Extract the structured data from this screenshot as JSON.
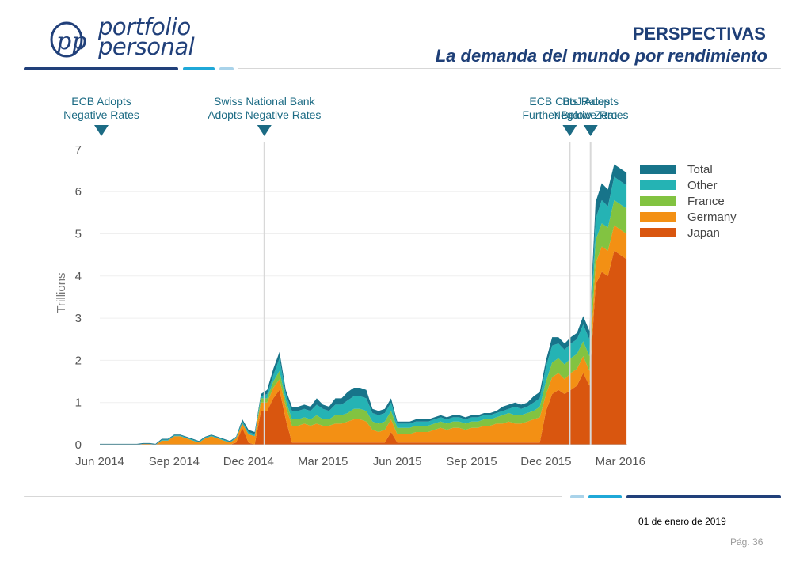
{
  "header": {
    "logo_text_line1": "portfolio",
    "logo_text_line2": "personal",
    "logo_mark": "pp",
    "title": "PERSPECTIVAS",
    "subtitle": "La demanda del mundo por rendimiento"
  },
  "footer": {
    "date": "01 de enero de 2019",
    "page": "Pág. 36"
  },
  "colors": {
    "brand_dark": "#21407a",
    "brand_light": "#1fa8d8",
    "brand_pale": "#a9d3ea",
    "Total": "#17748a",
    "Other": "#25b3b4",
    "France": "#82c341",
    "Germany": "#f39014",
    "Japan": "#d9560f"
  },
  "chart_data": {
    "type": "area",
    "stacked": true,
    "ylabel": "Trillions",
    "ylim": [
      0,
      7
    ],
    "yticks": [
      "0",
      "1",
      "2",
      "3",
      "4",
      "5",
      "6",
      "7"
    ],
    "xticks": [
      "Jun 2014",
      "Sep 2014",
      "Dec 2014",
      "Mar 2015",
      "Jun 2015",
      "Sep 2015",
      "Dec 2015",
      "Mar 2016"
    ],
    "x_start": "2014-06",
    "legend_position": "top-right",
    "legend": [
      "Total",
      "Other",
      "France",
      "Germany",
      "Japan"
    ],
    "annotations": [
      {
        "line1": "ECB Adopts",
        "line2": "Negative Rates",
        "date": "2014-06"
      },
      {
        "line1": "Swiss National Bank",
        "line2": "Adopts Negative Rates",
        "date": "2014-12"
      },
      {
        "line1": "ECB Cuts Rates",
        "line2": "Further Below Zero",
        "date": "2015-12"
      },
      {
        "line1": "BoJ Adopts",
        "line2": "Negative Rates",
        "date": "2016-01"
      }
    ],
    "x_month": [
      0,
      0.25,
      0.5,
      0.75,
      1,
      1.25,
      1.5,
      1.75,
      2,
      2.25,
      2.5,
      2.75,
      3,
      3.25,
      3.5,
      3.75,
      4,
      4.25,
      4.5,
      4.75,
      5,
      5.25,
      5.5,
      5.75,
      6,
      6.25,
      6.5,
      6.75,
      7,
      7.25,
      7.5,
      7.75,
      8,
      8.25,
      8.5,
      8.75,
      9,
      9.25,
      9.5,
      9.75,
      10,
      10.25,
      10.5,
      10.75,
      11,
      11.25,
      11.5,
      11.75,
      12,
      12.25,
      12.5,
      12.75,
      13,
      13.25,
      13.5,
      13.75,
      14,
      14.25,
      14.5,
      14.75,
      15,
      15.25,
      15.5,
      15.75,
      16,
      16.25,
      16.5,
      16.75,
      17,
      17.25,
      17.5,
      17.75,
      18,
      18.25,
      18.5,
      18.75,
      19,
      19.25,
      19.5,
      19.75,
      20,
      20.25,
      20.5,
      20.75,
      21,
      21.25
    ],
    "series": [
      {
        "name": "Japan",
        "values": [
          0,
          0,
          0,
          0,
          0,
          0,
          0,
          0,
          0,
          0,
          0,
          0,
          0,
          0,
          0,
          0,
          0,
          0,
          0,
          0,
          0,
          0,
          0.05,
          0.4,
          0.05,
          0,
          0.8,
          0.8,
          1.1,
          1.3,
          0.6,
          0.05,
          0.05,
          0.05,
          0.05,
          0.05,
          0.05,
          0.05,
          0.05,
          0.05,
          0.05,
          0.05,
          0.05,
          0.05,
          0.05,
          0.05,
          0.05,
          0.3,
          0.05,
          0.05,
          0.05,
          0.05,
          0.05,
          0.05,
          0.05,
          0.05,
          0.05,
          0.05,
          0.05,
          0.05,
          0.05,
          0.05,
          0.05,
          0.05,
          0.05,
          0.05,
          0.05,
          0.05,
          0.05,
          0.05,
          0.05,
          0.05,
          0.8,
          1.2,
          1.3,
          1.2,
          1.3,
          1.4,
          1.7,
          1.4,
          3.8,
          4.1,
          4.0,
          4.6,
          4.5,
          4.4
        ]
      },
      {
        "name": "Germany",
        "values": [
          0,
          0,
          0,
          0,
          0,
          0,
          0,
          0.02,
          0.02,
          0,
          0.1,
          0.1,
          0.2,
          0.2,
          0.15,
          0.1,
          0.05,
          0.15,
          0.2,
          0.15,
          0.1,
          0.05,
          0.1,
          0.1,
          0.2,
          0.2,
          0.2,
          0.2,
          0.25,
          0.25,
          0.3,
          0.4,
          0.4,
          0.45,
          0.4,
          0.45,
          0.4,
          0.4,
          0.45,
          0.45,
          0.5,
          0.55,
          0.55,
          0.5,
          0.3,
          0.25,
          0.3,
          0.3,
          0.2,
          0.2,
          0.2,
          0.25,
          0.25,
          0.25,
          0.3,
          0.35,
          0.3,
          0.35,
          0.35,
          0.3,
          0.35,
          0.35,
          0.4,
          0.4,
          0.45,
          0.45,
          0.5,
          0.45,
          0.45,
          0.5,
          0.55,
          0.6,
          0.4,
          0.4,
          0.4,
          0.35,
          0.4,
          0.4,
          0.4,
          0.35,
          0.5,
          0.6,
          0.6,
          0.6,
          0.6,
          0.6
        ]
      },
      {
        "name": "France",
        "values": [
          0,
          0,
          0,
          0,
          0,
          0,
          0,
          0,
          0,
          0,
          0,
          0,
          0,
          0,
          0,
          0,
          0,
          0,
          0,
          0,
          0,
          0,
          0,
          0,
          0,
          0,
          0.1,
          0.1,
          0.15,
          0.2,
          0.15,
          0.15,
          0.15,
          0.15,
          0.15,
          0.2,
          0.15,
          0.15,
          0.2,
          0.2,
          0.2,
          0.25,
          0.25,
          0.25,
          0.2,
          0.2,
          0.2,
          0.2,
          0.15,
          0.15,
          0.15,
          0.15,
          0.15,
          0.15,
          0.15,
          0.15,
          0.15,
          0.15,
          0.15,
          0.15,
          0.15,
          0.15,
          0.15,
          0.15,
          0.15,
          0.2,
          0.2,
          0.2,
          0.2,
          0.2,
          0.2,
          0.25,
          0.3,
          0.35,
          0.35,
          0.35,
          0.35,
          0.35,
          0.35,
          0.35,
          0.55,
          0.55,
          0.55,
          0.6,
          0.6,
          0.6
        ]
      },
      {
        "name": "Other",
        "values": [
          0,
          0,
          0,
          0,
          0,
          0,
          0,
          0,
          0,
          0,
          0.02,
          0.02,
          0.02,
          0.02,
          0.02,
          0.02,
          0.02,
          0.02,
          0.02,
          0.02,
          0.02,
          0.02,
          0.02,
          0.05,
          0.05,
          0.05,
          0.05,
          0.1,
          0.15,
          0.3,
          0.15,
          0.2,
          0.2,
          0.2,
          0.2,
          0.25,
          0.25,
          0.2,
          0.25,
          0.25,
          0.3,
          0.3,
          0.3,
          0.3,
          0.2,
          0.2,
          0.2,
          0.2,
          0.1,
          0.1,
          0.1,
          0.1,
          0.1,
          0.1,
          0.1,
          0.1,
          0.1,
          0.1,
          0.1,
          0.1,
          0.1,
          0.1,
          0.1,
          0.1,
          0.1,
          0.1,
          0.1,
          0.2,
          0.15,
          0.15,
          0.2,
          0.2,
          0.35,
          0.4,
          0.35,
          0.35,
          0.35,
          0.35,
          0.4,
          0.4,
          0.5,
          0.55,
          0.5,
          0.55,
          0.55,
          0.55
        ]
      },
      {
        "name": "Total",
        "values": [
          0.02,
          0.02,
          0.02,
          0.02,
          0.02,
          0.02,
          0.02,
          0.02,
          0.02,
          0.02,
          0.02,
          0.02,
          0.02,
          0.02,
          0.02,
          0.02,
          0.02,
          0.02,
          0.02,
          0.02,
          0.02,
          0.02,
          0.02,
          0.05,
          0.05,
          0.05,
          0.05,
          0.1,
          0.15,
          0.15,
          0.1,
          0.1,
          0.1,
          0.1,
          0.1,
          0.15,
          0.1,
          0.1,
          0.15,
          0.15,
          0.2,
          0.2,
          0.2,
          0.2,
          0.1,
          0.1,
          0.1,
          0.1,
          0.05,
          0.05,
          0.05,
          0.05,
          0.05,
          0.05,
          0.05,
          0.05,
          0.05,
          0.05,
          0.05,
          0.05,
          0.05,
          0.05,
          0.05,
          0.05,
          0.05,
          0.1,
          0.1,
          0.1,
          0.1,
          0.1,
          0.15,
          0.15,
          0.15,
          0.2,
          0.15,
          0.15,
          0.15,
          0.15,
          0.2,
          0.2,
          0.4,
          0.4,
          0.4,
          0.3,
          0.3,
          0.3
        ]
      }
    ]
  }
}
